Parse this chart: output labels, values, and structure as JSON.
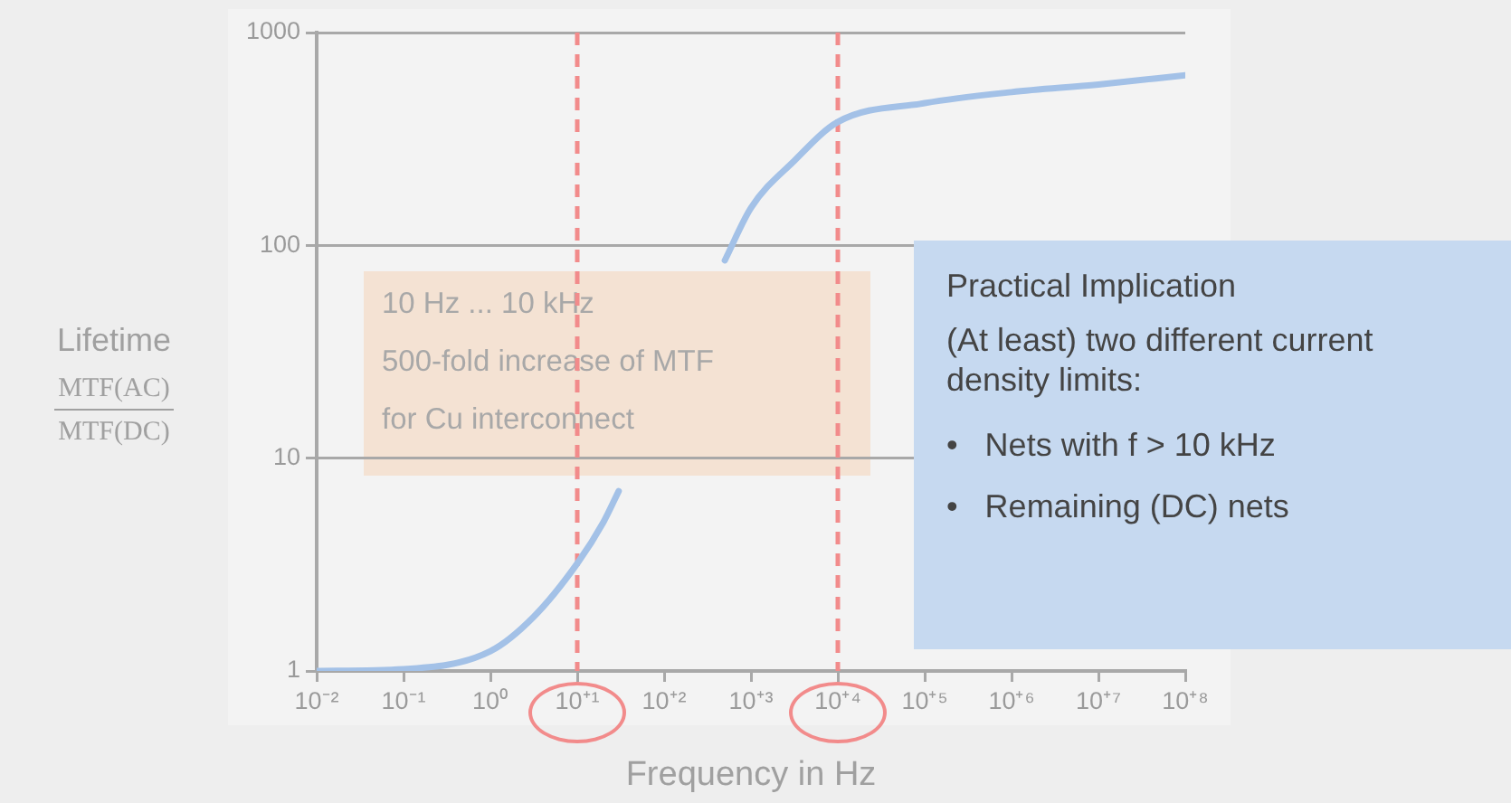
{
  "chart_data": {
    "type": "line",
    "xlabel": "Frequency in Hz",
    "ylabel": "Lifetime MTF(AC) MTF(DC)",
    "log": "xy",
    "x": [
      0.01,
      0.1,
      1,
      3.16,
      10,
      20,
      30,
      100,
      500,
      1000,
      3160,
      10000,
      100000,
      1000000,
      10000000,
      100000000
    ],
    "series": [
      {
        "color": "#a3c1e7",
        "values": [
          1,
          1.02,
          1.24,
          1.8,
          3.2,
          5,
          7,
          null,
          85,
          150,
          250,
          380,
          466,
          525,
          570,
          630
        ]
      }
    ],
    "xlim": [
      0.01,
      100000000
    ],
    "ylim": [
      1,
      1000
    ],
    "xticks": [
      {
        "value": 0.01,
        "label": "10⁻²"
      },
      {
        "value": 0.1,
        "label": "10⁻¹"
      },
      {
        "value": 1,
        "label": "10⁰"
      },
      {
        "value": 10,
        "label": "10⁺¹"
      },
      {
        "value": 100,
        "label": "10⁺²"
      },
      {
        "value": 1000,
        "label": "10⁺³"
      },
      {
        "value": 10000,
        "label": "10⁺⁴"
      },
      {
        "value": 100000,
        "label": "10⁺⁵"
      },
      {
        "value": 1000000,
        "label": "10⁺⁶"
      },
      {
        "value": 10000000,
        "label": "10⁺⁷"
      },
      {
        "value": 100000000,
        "label": "10⁺⁸"
      }
    ],
    "yticks": [
      1,
      10,
      100,
      1000
    ],
    "grid": "y",
    "marker": "none",
    "line_style": "solid",
    "ref_lines": [
      {
        "axis": "x",
        "value": 10,
        "color": "#f28b8b",
        "line_style": "dashed"
      },
      {
        "axis": "x",
        "value": 10000,
        "color": "#f28b8b",
        "line_style": "dashed"
      }
    ],
    "annotations": [
      "10 Hz ... 10 kHz",
      "500-fold increase of MTF",
      "for Cu interconnect",
      "Practical Implication",
      "(At least) two different current density limits:",
      "•   Nets with f > 10 kHz",
      "•   Remaining (DC) nets"
    ]
  }
}
